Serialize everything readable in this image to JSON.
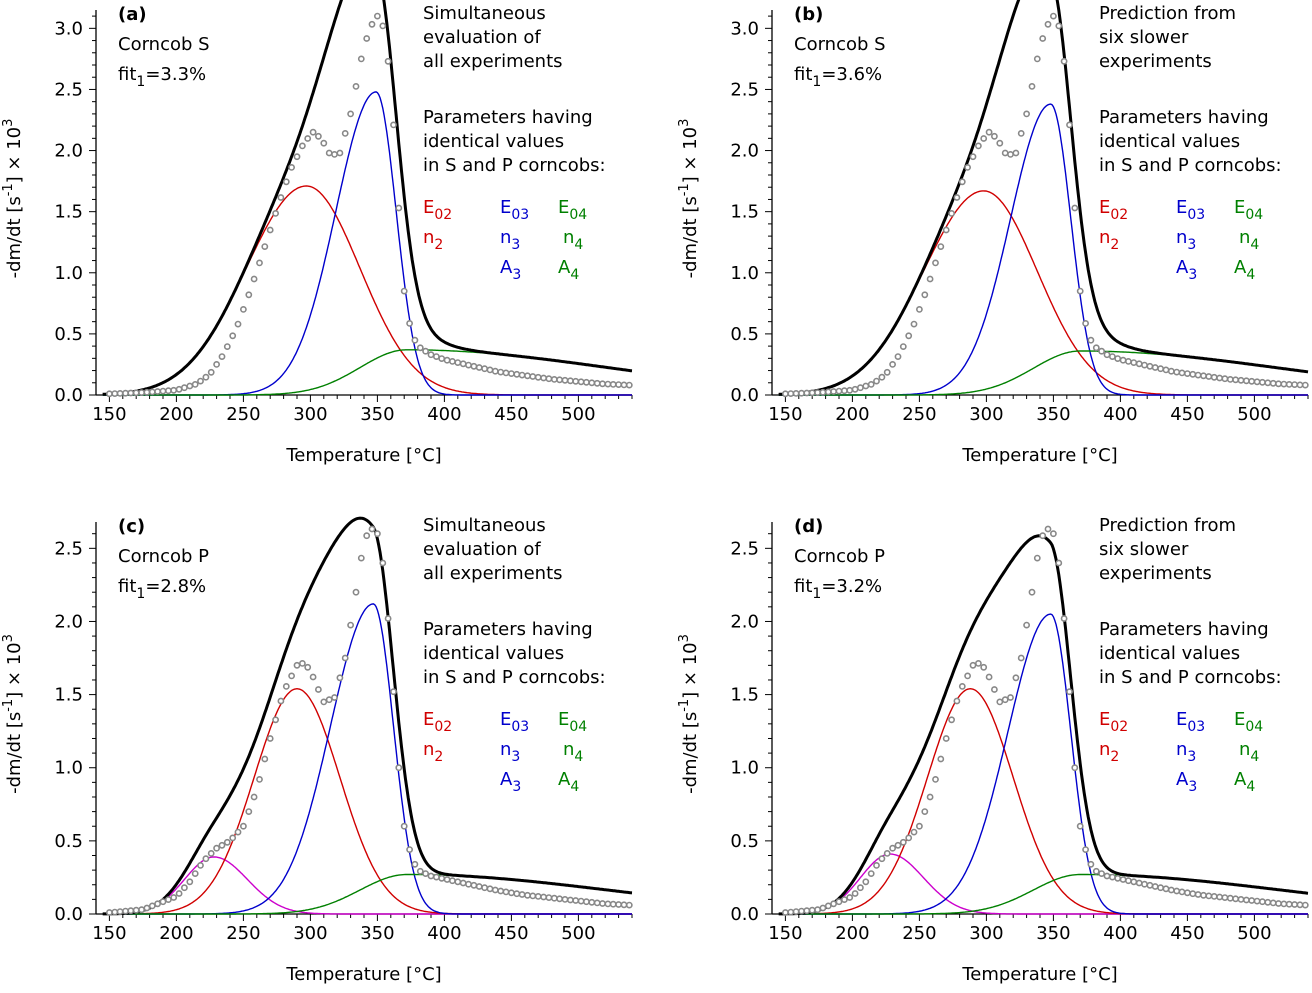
{
  "chart_data": [
    {
      "type": "line",
      "panel_label": "(a)",
      "sample": "Corncob S",
      "fit_prefix": "fit",
      "fit_sub": "1",
      "fit_value": "=3.3%",
      "note_lines": [
        "Simultaneous",
        "evaluation of",
        "all experiments"
      ],
      "param_lines": [
        "Parameters having",
        "identical values",
        "in S and P corncobs:"
      ],
      "xlabel": "Temperature  [°C]",
      "ylabel": "-dm/dt  [s-1]  ×  103",
      "xlim": [
        140,
        540
      ],
      "ylim": [
        0,
        3.15
      ],
      "xticks": [
        150,
        200,
        250,
        300,
        350,
        400,
        450,
        500
      ],
      "yticks": [
        0.0,
        0.5,
        1.0,
        1.5,
        2.0,
        2.5,
        3.0
      ],
      "components": [
        {
          "color": "#d00000",
          "peak_x": 297,
          "peak_y": 1.71,
          "wl": 45,
          "wr": 40
        },
        {
          "color": "#0000cc",
          "peak_x": 349,
          "peak_y": 2.48,
          "wl": 30,
          "wr": 15
        },
        {
          "color": "#008000",
          "peak_x": 372,
          "peak_y": 0.37,
          "wl": 35,
          "wr": 150
        }
      ],
      "measured": {
        "x": [
          150,
          175,
          200,
          215,
          225,
          235,
          245,
          255,
          265,
          275,
          285,
          295,
          302,
          308,
          315,
          322,
          330,
          338,
          344,
          350,
          355,
          360,
          365,
          370,
          375,
          380,
          390,
          400,
          420,
          440,
          460,
          480,
          500,
          520,
          540
        ],
        "y": [
          0.01,
          0.02,
          0.04,
          0.09,
          0.17,
          0.33,
          0.55,
          0.85,
          1.18,
          1.52,
          1.84,
          2.06,
          2.15,
          2.1,
          1.96,
          1.98,
          2.3,
          2.75,
          3.0,
          3.1,
          3.0,
          2.55,
          1.7,
          0.85,
          0.52,
          0.4,
          0.33,
          0.29,
          0.24,
          0.19,
          0.16,
          0.13,
          0.11,
          0.09,
          0.08
        ]
      }
    },
    {
      "type": "line",
      "panel_label": "(b)",
      "sample": "Corncob S",
      "fit_prefix": "fit",
      "fit_sub": "1",
      "fit_value": "=3.6%",
      "note_lines": [
        "Prediction from",
        "six slower",
        "experiments"
      ],
      "param_lines": [
        "Parameters having",
        "identical values",
        "in S and P corncobs:"
      ],
      "xlabel": "Temperature  [°C]",
      "ylabel": "-dm/dt  [s-1]  ×  103",
      "xlim": [
        140,
        540
      ],
      "ylim": [
        0,
        3.15
      ],
      "xticks": [
        150,
        200,
        250,
        300,
        350,
        400,
        450,
        500
      ],
      "yticks": [
        0.0,
        0.5,
        1.0,
        1.5,
        2.0,
        2.5,
        3.0
      ],
      "components": [
        {
          "color": "#d00000",
          "peak_x": 298,
          "peak_y": 1.67,
          "wl": 45,
          "wr": 40
        },
        {
          "color": "#0000cc",
          "peak_x": 348,
          "peak_y": 2.38,
          "wl": 30,
          "wr": 15
        },
        {
          "color": "#008000",
          "peak_x": 370,
          "peak_y": 0.36,
          "wl": 35,
          "wr": 150
        }
      ],
      "measured": {
        "x": [
          150,
          175,
          200,
          215,
          225,
          235,
          245,
          255,
          265,
          275,
          285,
          295,
          302,
          308,
          315,
          322,
          330,
          338,
          344,
          350,
          355,
          360,
          365,
          370,
          375,
          380,
          390,
          400,
          420,
          440,
          460,
          480,
          500,
          520,
          540
        ],
        "y": [
          0.01,
          0.02,
          0.04,
          0.09,
          0.17,
          0.33,
          0.55,
          0.85,
          1.18,
          1.52,
          1.84,
          2.06,
          2.15,
          2.1,
          1.96,
          1.98,
          2.3,
          2.75,
          3.0,
          3.1,
          3.0,
          2.55,
          1.7,
          0.85,
          0.52,
          0.4,
          0.33,
          0.29,
          0.24,
          0.19,
          0.16,
          0.13,
          0.11,
          0.09,
          0.08
        ]
      }
    },
    {
      "type": "line",
      "panel_label": "(c)",
      "sample": "Corncob P",
      "fit_prefix": "fit",
      "fit_sub": "1",
      "fit_value": "=2.8%",
      "note_lines": [
        "Simultaneous",
        "evaluation of",
        "all experiments"
      ],
      "param_lines": [
        "Parameters having",
        "identical values",
        "in S and P corncobs:"
      ],
      "xlabel": "Temperature  [°C]",
      "ylabel": "-dm/dt  [s-1]  ×  103",
      "xlim": [
        140,
        540
      ],
      "ylim": [
        0,
        2.68
      ],
      "xticks": [
        150,
        200,
        250,
        300,
        350,
        400,
        450,
        500
      ],
      "yticks": [
        0.0,
        0.5,
        1.0,
        1.5,
        2.0,
        2.5
      ],
      "components": [
        {
          "color": "#cc00cc",
          "peak_x": 228,
          "peak_y": 0.39,
          "wl": 22,
          "wr": 25
        },
        {
          "color": "#d00000",
          "peak_x": 290,
          "peak_y": 1.54,
          "wl": 32,
          "wr": 32
        },
        {
          "color": "#0000cc",
          "peak_x": 347,
          "peak_y": 2.12,
          "wl": 32,
          "wr": 15
        },
        {
          "color": "#008000",
          "peak_x": 372,
          "peak_y": 0.27,
          "wl": 35,
          "wr": 150
        }
      ],
      "measured": {
        "x": [
          150,
          175,
          200,
          210,
          220,
          230,
          240,
          250,
          260,
          270,
          280,
          290,
          296,
          302,
          310,
          318,
          326,
          334,
          340,
          345,
          350,
          355,
          360,
          365,
          370,
          375,
          380,
          390,
          400,
          420,
          440,
          460,
          480,
          500,
          520,
          540
        ],
        "y": [
          0.01,
          0.03,
          0.12,
          0.22,
          0.36,
          0.45,
          0.5,
          0.6,
          0.85,
          1.2,
          1.52,
          1.7,
          1.72,
          1.62,
          1.45,
          1.48,
          1.75,
          2.2,
          2.55,
          2.64,
          2.6,
          2.35,
          1.8,
          1.1,
          0.6,
          0.4,
          0.3,
          0.26,
          0.24,
          0.2,
          0.16,
          0.13,
          0.11,
          0.09,
          0.07,
          0.06
        ]
      }
    },
    {
      "type": "line",
      "panel_label": "(d)",
      "sample": "Corncob P",
      "fit_prefix": "fit",
      "fit_sub": "1",
      "fit_value": "=3.2%",
      "note_lines": [
        "Prediction from",
        "six slower",
        "experiments"
      ],
      "param_lines": [
        "Parameters having",
        "identical values",
        "in S and P corncobs:"
      ],
      "xlabel": "Temperature  [°C]",
      "ylabel": "-dm/dt  [s-1]  ×  103",
      "xlim": [
        140,
        540
      ],
      "ylim": [
        0,
        2.68
      ],
      "xticks": [
        150,
        200,
        250,
        300,
        350,
        400,
        450,
        500
      ],
      "yticks": [
        0.0,
        0.5,
        1.0,
        1.5,
        2.0,
        2.5
      ],
      "components": [
        {
          "color": "#cc00cc",
          "peak_x": 228,
          "peak_y": 0.41,
          "wl": 22,
          "wr": 25
        },
        {
          "color": "#d00000",
          "peak_x": 288,
          "peak_y": 1.54,
          "wl": 32,
          "wr": 32
        },
        {
          "color": "#0000cc",
          "peak_x": 348,
          "peak_y": 2.05,
          "wl": 32,
          "wr": 15
        },
        {
          "color": "#008000",
          "peak_x": 370,
          "peak_y": 0.27,
          "wl": 35,
          "wr": 150
        }
      ],
      "measured": {
        "x": [
          150,
          175,
          200,
          210,
          220,
          230,
          240,
          250,
          260,
          270,
          280,
          290,
          296,
          302,
          310,
          318,
          326,
          334,
          340,
          345,
          350,
          355,
          360,
          365,
          370,
          375,
          380,
          390,
          400,
          420,
          440,
          460,
          480,
          500,
          520,
          540
        ],
        "y": [
          0.01,
          0.03,
          0.12,
          0.22,
          0.36,
          0.45,
          0.5,
          0.6,
          0.85,
          1.2,
          1.52,
          1.7,
          1.72,
          1.62,
          1.45,
          1.48,
          1.75,
          2.2,
          2.55,
          2.64,
          2.6,
          2.35,
          1.8,
          1.1,
          0.6,
          0.4,
          0.3,
          0.26,
          0.24,
          0.2,
          0.16,
          0.13,
          0.11,
          0.09,
          0.07,
          0.06
        ]
      }
    }
  ],
  "param_labels": [
    {
      "base": "E",
      "sub": "02",
      "color": "#d00000",
      "col": 0,
      "row": 0
    },
    {
      "base": "E",
      "sub": "03",
      "color": "#0000cc",
      "col": 1,
      "row": 0
    },
    {
      "base": "E",
      "sub": "04",
      "color": "#008000",
      "col": 2,
      "row": 0
    },
    {
      "base": "n",
      "sub": "2",
      "color": "#d00000",
      "col": 0,
      "row": 1
    },
    {
      "base": "n",
      "sub": "3",
      "color": "#0000cc",
      "col": 1,
      "row": 1
    },
    {
      "base": "n",
      "sub": "4",
      "color": "#008000",
      "col": 2,
      "row": 1
    },
    {
      "base": "A",
      "sub": "3",
      "color": "#0000cc",
      "col": 1,
      "row": 2
    },
    {
      "base": "A",
      "sub": "4",
      "color": "#008000",
      "col": 2,
      "row": 2
    }
  ]
}
